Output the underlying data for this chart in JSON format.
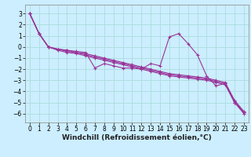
{
  "background_color": "#cceeff",
  "grid_color": "#aadddd",
  "line_color": "#993399",
  "xlabel": "Windchill (Refroidissement éolien,°C)",
  "xlabel_fontsize": 6.5,
  "tick_fontsize": 5.5,
  "xlim": [
    -0.5,
    23.5
  ],
  "ylim": [
    -6.8,
    3.8
  ],
  "yticks": [
    -6,
    -5,
    -4,
    -3,
    -2,
    -1,
    0,
    1,
    2,
    3
  ],
  "xticks": [
    0,
    1,
    2,
    3,
    4,
    5,
    6,
    7,
    8,
    9,
    10,
    11,
    12,
    13,
    14,
    15,
    16,
    17,
    18,
    19,
    20,
    21,
    22,
    23
  ],
  "series_spike": [
    3.0,
    1.2,
    0.0,
    -0.2,
    -0.3,
    -0.4,
    -0.5,
    -1.9,
    -1.5,
    -1.7,
    -1.9,
    -1.9,
    -2.0,
    -1.5,
    -1.7,
    0.9,
    1.2,
    0.3,
    -0.7,
    -2.6,
    -3.5,
    -3.3,
    -5.0,
    -5.9
  ],
  "series_linear": [
    [
      3.0,
      1.2,
      0.0,
      -0.2,
      -0.3,
      -0.5,
      -0.6,
      -0.8,
      -1.0,
      -1.2,
      -1.4,
      -1.6,
      -1.8,
      -2.0,
      -2.2,
      -2.4,
      -2.5,
      -2.6,
      -2.7,
      -2.8,
      -3.0,
      -3.2,
      -4.8,
      -5.8
    ],
    [
      3.0,
      1.2,
      0.0,
      -0.2,
      -0.4,
      -0.5,
      -0.7,
      -0.9,
      -1.1,
      -1.3,
      -1.5,
      -1.7,
      -1.9,
      -2.1,
      -2.3,
      -2.5,
      -2.6,
      -2.7,
      -2.8,
      -2.9,
      -3.1,
      -3.3,
      -4.9,
      -5.9
    ],
    [
      3.0,
      1.2,
      0.0,
      -0.3,
      -0.5,
      -0.6,
      -0.8,
      -1.0,
      -1.2,
      -1.4,
      -1.6,
      -1.8,
      -2.0,
      -2.2,
      -2.4,
      -2.6,
      -2.7,
      -2.8,
      -2.9,
      -3.0,
      -3.2,
      -3.4,
      -5.0,
      -6.0
    ]
  ]
}
